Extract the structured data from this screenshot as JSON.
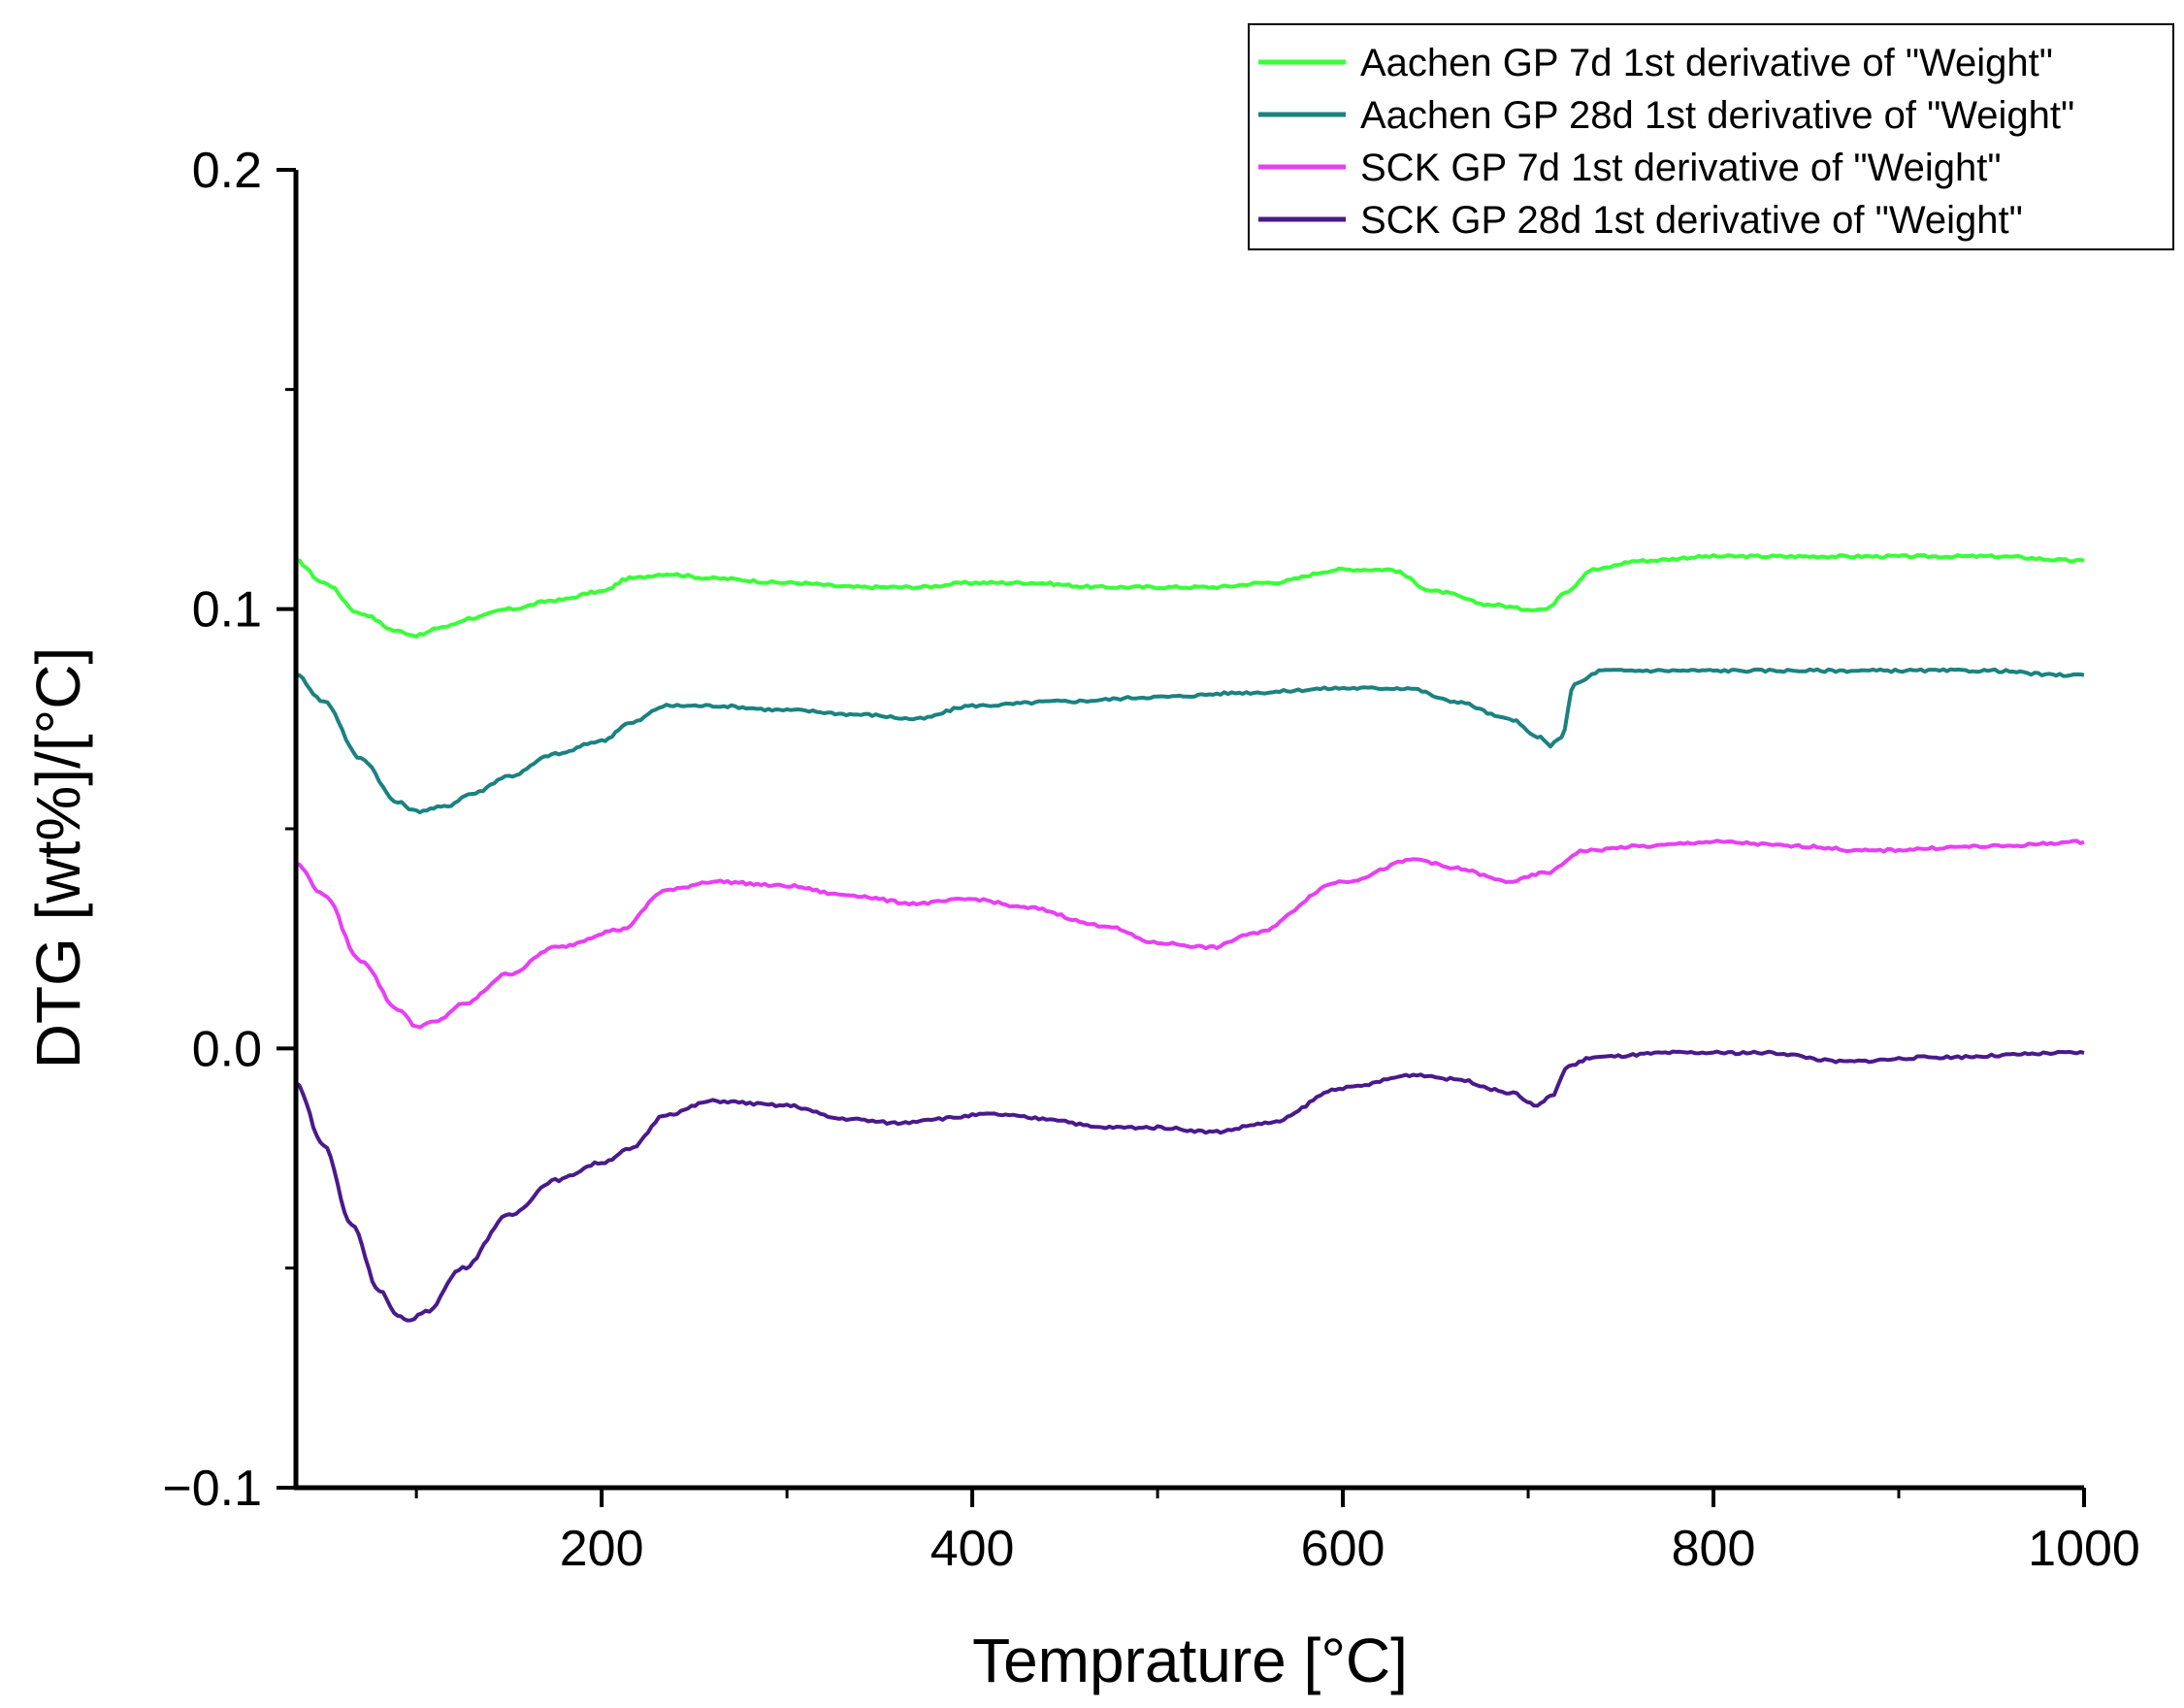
{
  "chart_data": {
    "type": "line",
    "title": "",
    "xlabel": "Temprature [°C]",
    "ylabel": "DTG  [wt%]/[°C]",
    "xlim": [
      35,
      1000
    ],
    "ylim": [
      -0.1,
      0.2
    ],
    "x_ticks": [
      200,
      400,
      600,
      800,
      1000
    ],
    "x_tick_labels": [
      "200",
      "400",
      "600",
      "800",
      "1000"
    ],
    "x_minor_ticks": [
      100,
      300,
      500,
      700,
      900
    ],
    "y_ticks": [
      -0.1,
      0.0,
      0.1,
      0.2
    ],
    "y_tick_labels": [
      "−0.1",
      "0.0",
      "0.1",
      "0.2"
    ],
    "y_minor_ticks": [
      -0.05,
      0.05,
      0.15
    ],
    "grid": false,
    "legend_position": "top-right",
    "series": [
      {
        "name": "Aachen GP 7d 1st derivative of \"Weight\"",
        "color": "#39ff39",
        "x": [
          35,
          50,
          70,
          90,
          100,
          115,
          130,
          150,
          175,
          200,
          215,
          235,
          260,
          300,
          340,
          370,
          400,
          430,
          470,
          500,
          530,
          560,
          600,
          625,
          650,
          680,
          700,
          710,
          720,
          735,
          760,
          800,
          850,
          900,
          950,
          1000
        ],
        "y": [
          0.111,
          0.106,
          0.099,
          0.095,
          0.094,
          0.096,
          0.098,
          0.1,
          0.102,
          0.104,
          0.107,
          0.108,
          0.107,
          0.106,
          0.105,
          0.105,
          0.106,
          0.106,
          0.105,
          0.105,
          0.105,
          0.106,
          0.109,
          0.109,
          0.104,
          0.101,
          0.1,
          0.1,
          0.104,
          0.109,
          0.111,
          0.112,
          0.112,
          0.112,
          0.112,
          0.111
        ]
      },
      {
        "name": "Aachen GP 28d 1st derivative of \"Weight\"",
        "color": "#1b8281",
        "x": [
          35,
          50,
          70,
          90,
          100,
          115,
          130,
          150,
          175,
          200,
          215,
          235,
          260,
          300,
          340,
          370,
          400,
          450,
          500,
          550,
          600,
          635,
          660,
          690,
          705,
          712,
          718,
          725,
          740,
          780,
          850,
          900,
          950,
          985,
          1000
        ],
        "y": [
          0.085,
          0.079,
          0.066,
          0.056,
          0.054,
          0.055,
          0.058,
          0.062,
          0.067,
          0.07,
          0.074,
          0.078,
          0.078,
          0.077,
          0.076,
          0.075,
          0.078,
          0.079,
          0.08,
          0.081,
          0.082,
          0.082,
          0.079,
          0.075,
          0.071,
          0.069,
          0.071,
          0.083,
          0.086,
          0.086,
          0.086,
          0.086,
          0.086,
          0.085,
          0.085
        ]
      },
      {
        "name": "SCK GP 7d 1st derivative of \"Weight\"",
        "color": "#e83ff5",
        "x": [
          35,
          50,
          70,
          90,
          100,
          110,
          125,
          150,
          175,
          210,
          235,
          260,
          300,
          330,
          370,
          400,
          430,
          470,
          500,
          530,
          550,
          600,
          640,
          660,
          690,
          710,
          730,
          760,
          800,
          850,
          880,
          950,
          1000
        ],
        "y": [
          0.042,
          0.035,
          0.02,
          0.009,
          0.005,
          0.006,
          0.01,
          0.017,
          0.023,
          0.027,
          0.036,
          0.038,
          0.037,
          0.035,
          0.033,
          0.034,
          0.032,
          0.028,
          0.024,
          0.023,
          0.026,
          0.038,
          0.043,
          0.041,
          0.038,
          0.04,
          0.045,
          0.046,
          0.047,
          0.046,
          0.045,
          0.046,
          0.047
        ]
      },
      {
        "name": "SCK GP 28d 1st derivative of \"Weight\"",
        "color": "#4a1a8c",
        "x": [
          35,
          50,
          65,
          80,
          90,
          95,
          105,
          125,
          150,
          175,
          200,
          215,
          235,
          260,
          300,
          330,
          360,
          380,
          410,
          440,
          470,
          500,
          530,
          560,
          600,
          640,
          660,
          690,
          705,
          712,
          722,
          735,
          780,
          830,
          870,
          920,
          1000
        ],
        "y": [
          -0.008,
          -0.022,
          -0.04,
          -0.055,
          -0.061,
          -0.062,
          -0.06,
          -0.05,
          -0.038,
          -0.03,
          -0.026,
          -0.023,
          -0.015,
          -0.012,
          -0.013,
          -0.016,
          -0.017,
          -0.016,
          -0.015,
          -0.016,
          -0.018,
          -0.018,
          -0.019,
          -0.017,
          -0.009,
          -0.006,
          -0.007,
          -0.01,
          -0.013,
          -0.011,
          -0.004,
          -0.002,
          -0.001,
          -0.001,
          -0.003,
          -0.002,
          -0.001
        ]
      }
    ]
  }
}
